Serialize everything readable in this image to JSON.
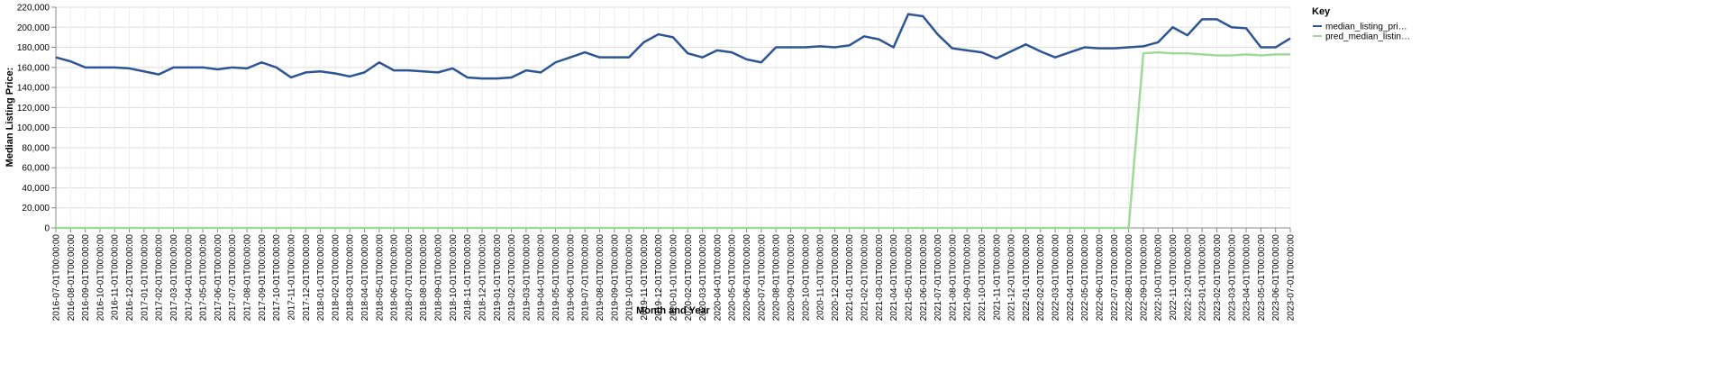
{
  "chart_data": {
    "type": "line",
    "x_label": "Month and Year",
    "y_label": "Median Listing Price:",
    "legend_title": "Key",
    "legend_position": "right",
    "grid": true,
    "categories": [
      "2016-07-01T00:00:00",
      "2016-08-01T00:00:00",
      "2016-09-01T00:00:00",
      "2016-10-01T00:00:00",
      "2016-11-01T00:00:00",
      "2016-12-01T00:00:00",
      "2017-01-01T00:00:00",
      "2017-02-01T00:00:00",
      "2017-03-01T00:00:00",
      "2017-04-01T00:00:00",
      "2017-05-01T00:00:00",
      "2017-06-01T00:00:00",
      "2017-07-01T00:00:00",
      "2017-08-01T00:00:00",
      "2017-09-01T00:00:00",
      "2017-10-01T00:00:00",
      "2017-11-01T00:00:00",
      "2017-12-01T00:00:00",
      "2018-01-01T00:00:00",
      "2018-02-01T00:00:00",
      "2018-03-01T00:00:00",
      "2018-04-01T00:00:00",
      "2018-05-01T00:00:00",
      "2018-06-01T00:00:00",
      "2018-07-01T00:00:00",
      "2018-08-01T00:00:00",
      "2018-09-01T00:00:00",
      "2018-10-01T00:00:00",
      "2018-11-01T00:00:00",
      "2018-12-01T00:00:00",
      "2019-01-01T00:00:00",
      "2019-02-01T00:00:00",
      "2019-03-01T00:00:00",
      "2019-04-01T00:00:00",
      "2019-05-01T00:00:00",
      "2019-06-01T00:00:00",
      "2019-07-01T00:00:00",
      "2019-08-01T00:00:00",
      "2019-09-01T00:00:00",
      "2019-10-01T00:00:00",
      "2019-11-01T00:00:00",
      "2019-12-01T00:00:00",
      "2020-01-01T00:00:00",
      "2020-02-01T00:00:00",
      "2020-03-01T00:00:00",
      "2020-04-01T00:00:00",
      "2020-05-01T00:00:00",
      "2020-06-01T00:00:00",
      "2020-07-01T00:00:00",
      "2020-08-01T00:00:00",
      "2020-09-01T00:00:00",
      "2020-10-01T00:00:00",
      "2020-11-01T00:00:00",
      "2020-12-01T00:00:00",
      "2021-01-01T00:00:00",
      "2021-02-01T00:00:00",
      "2021-03-01T00:00:00",
      "2021-04-01T00:00:00",
      "2021-05-01T00:00:00",
      "2021-06-01T00:00:00",
      "2021-07-01T00:00:00",
      "2021-08-01T00:00:00",
      "2021-09-01T00:00:00",
      "2021-10-01T00:00:00",
      "2021-11-01T00:00:00",
      "2021-12-01T00:00:00",
      "2022-01-01T00:00:00",
      "2022-02-01T00:00:00",
      "2022-03-01T00:00:00",
      "2022-04-01T00:00:00",
      "2022-05-01T00:00:00",
      "2022-06-01T00:00:00",
      "2022-07-01T00:00:00",
      "2022-08-01T00:00:00",
      "2022-09-01T00:00:00",
      "2022-10-01T00:00:00",
      "2022-11-01T00:00:00",
      "2022-12-01T00:00:00",
      "2023-01-01T00:00:00",
      "2023-02-01T00:00:00",
      "2023-03-01T00:00:00",
      "2023-04-01T00:00:00",
      "2023-05-01T00:00:00",
      "2023-06-01T00:00:00",
      "2023-07-01T00:00:00"
    ],
    "series": [
      {
        "name": "median_listing_pri…",
        "color": "#2d5596",
        "values": [
          170000,
          166000,
          160000,
          160000,
          160000,
          159000,
          156000,
          153000,
          160000,
          160000,
          160000,
          158000,
          160000,
          159000,
          165000,
          160000,
          150000,
          155000,
          156000,
          154000,
          151000,
          155000,
          165000,
          157000,
          157000,
          156000,
          155000,
          159000,
          150000,
          149000,
          149000,
          150000,
          157000,
          155000,
          165000,
          170000,
          175000,
          170000,
          170000,
          170000,
          185000,
          193000,
          190000,
          174000,
          170000,
          177000,
          175000,
          168000,
          165000,
          180000,
          180000,
          180000,
          181000,
          180000,
          182000,
          191000,
          188000,
          180000,
          213000,
          211000,
          193000,
          179000,
          177000,
          175000,
          169000,
          176000,
          183000,
          176000,
          170000,
          175000,
          180000,
          179000,
          179000,
          180000,
          181000,
          185000,
          200000,
          192000,
          208000,
          208000,
          200000,
          199000,
          180000,
          180000,
          189000
        ]
      },
      {
        "name": "pred_median_listin…",
        "color": "#a1d99b",
        "values": [
          0,
          0,
          0,
          0,
          0,
          0,
          0,
          0,
          0,
          0,
          0,
          0,
          0,
          0,
          0,
          0,
          0,
          0,
          0,
          0,
          0,
          0,
          0,
          0,
          0,
          0,
          0,
          0,
          0,
          0,
          0,
          0,
          0,
          0,
          0,
          0,
          0,
          0,
          0,
          0,
          0,
          0,
          0,
          0,
          0,
          0,
          0,
          0,
          0,
          0,
          0,
          0,
          0,
          0,
          0,
          0,
          0,
          0,
          0,
          0,
          0,
          0,
          0,
          0,
          0,
          0,
          0,
          0,
          0,
          0,
          0,
          0,
          0,
          0,
          174000,
          175000,
          174000,
          174000,
          173000,
          172000,
          172000,
          173000,
          172000,
          173000,
          173000
        ]
      }
    ],
    "ylim": [
      0,
      220000
    ],
    "yticks": [
      0,
      {
        "value": 20000,
        "label": "20,000"
      },
      {
        "value": 40000,
        "label": "40,000"
      },
      {
        "value": 60000,
        "label": "60,000"
      },
      {
        "value": 80000,
        "label": "80,000"
      },
      {
        "value": 100000,
        "label": "100,000"
      },
      {
        "value": 120000,
        "label": "120,000"
      },
      {
        "value": 140000,
        "label": "140,000"
      },
      {
        "value": 160000,
        "label": "160,000"
      },
      {
        "value": 180000,
        "label": "180,000"
      },
      {
        "value": 200000,
        "label": "200,000"
      },
      {
        "value": 220000,
        "label": "220,000"
      }
    ]
  }
}
